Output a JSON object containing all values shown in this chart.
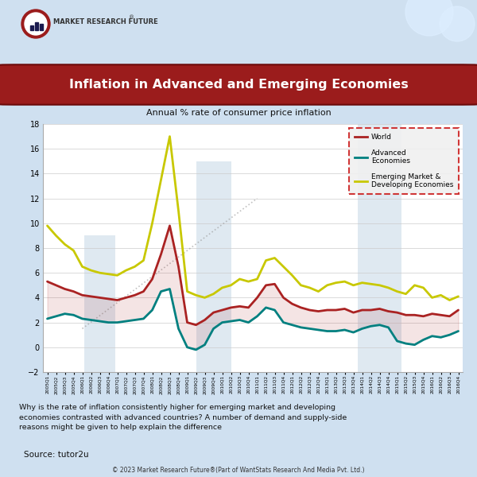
{
  "title": "Inflation in Advanced and Emerging Economies",
  "subtitle": "Annual % rate of consumer price inflation",
  "source_text": "Source: tutor2u",
  "footer_text": "© 2023 Market Research Future®(Part of WantStats Research And Media Pvt. Ltd.)",
  "description": "Why is the rate of inflation consistently higher for emerging market and developing\neconomies contrasted with advanced countries? A number of demand and supply-side\nreasons might be given to help explain the difference",
  "bg_color": "#cfe0f0",
  "plot_bg_color": "#ffffff",
  "footer_bg_color": "#d0d0d0",
  "title_bg_color": "#9b1c1c",
  "title_text_color": "#ffffff",
  "quarters": [
    "2005Q1",
    "2005Q2",
    "2005Q3",
    "2005Q4",
    "2006Q1",
    "2006Q2",
    "2006Q3",
    "2006Q4",
    "2007Q1",
    "2007Q2",
    "2007Q3",
    "2007Q4",
    "2008Q1",
    "2008Q2",
    "2008Q3",
    "2008Q4",
    "2009Q1",
    "2009Q2",
    "2009Q3",
    "2009Q4",
    "2010Q1",
    "2010Q2",
    "2010Q3",
    "2010Q4",
    "2011Q1",
    "2011Q2",
    "2011Q3",
    "2011Q4",
    "2012Q1",
    "2012Q2",
    "2012Q3",
    "2012Q4",
    "2013Q1",
    "2013Q2",
    "2013Q3",
    "2013Q4",
    "2014Q1",
    "2014Q2",
    "2014Q3",
    "2014Q4",
    "2015Q1",
    "2015Q2",
    "2015Q3",
    "2015Q4",
    "2016Q1",
    "2016Q2",
    "2016Q3",
    "2016Q4"
  ],
  "world": [
    5.3,
    5.0,
    4.7,
    4.5,
    4.2,
    4.1,
    4.0,
    3.9,
    3.8,
    4.0,
    4.2,
    4.5,
    5.5,
    7.5,
    9.8,
    6.5,
    2.0,
    1.8,
    2.2,
    2.8,
    3.0,
    3.2,
    3.3,
    3.2,
    4.0,
    5.0,
    5.1,
    4.0,
    3.5,
    3.2,
    3.0,
    2.9,
    3.0,
    3.0,
    3.1,
    2.8,
    3.0,
    3.0,
    3.1,
    2.9,
    2.8,
    2.6,
    2.6,
    2.5,
    2.7,
    2.6,
    2.5,
    3.0
  ],
  "advanced": [
    2.3,
    2.5,
    2.7,
    2.6,
    2.3,
    2.2,
    2.1,
    2.0,
    2.0,
    2.1,
    2.2,
    2.3,
    3.0,
    4.5,
    4.7,
    1.5,
    0.0,
    -0.2,
    0.2,
    1.5,
    2.0,
    2.1,
    2.2,
    2.0,
    2.5,
    3.2,
    3.0,
    2.0,
    1.8,
    1.6,
    1.5,
    1.4,
    1.3,
    1.3,
    1.4,
    1.2,
    1.5,
    1.7,
    1.8,
    1.6,
    0.5,
    0.3,
    0.2,
    0.6,
    0.9,
    0.8,
    1.0,
    1.3
  ],
  "emerging": [
    9.8,
    9.0,
    8.3,
    7.8,
    6.5,
    6.2,
    6.0,
    5.9,
    5.8,
    6.2,
    6.5,
    7.0,
    10.0,
    13.5,
    17.0,
    11.0,
    4.5,
    4.2,
    4.0,
    4.3,
    4.8,
    5.0,
    5.5,
    5.3,
    5.5,
    7.0,
    7.2,
    6.5,
    5.8,
    5.0,
    4.8,
    4.5,
    5.0,
    5.2,
    5.3,
    5.0,
    5.2,
    5.1,
    5.0,
    4.8,
    4.5,
    4.3,
    5.0,
    4.8,
    4.0,
    4.2,
    3.8,
    4.1
  ],
  "world_color": "#aa2222",
  "advanced_color": "#008080",
  "emerging_color": "#c8c800",
  "ylim": [
    -2,
    18
  ],
  "yticks": [
    -2,
    0,
    2,
    4,
    6,
    8,
    10,
    12,
    14,
    16,
    18
  ]
}
